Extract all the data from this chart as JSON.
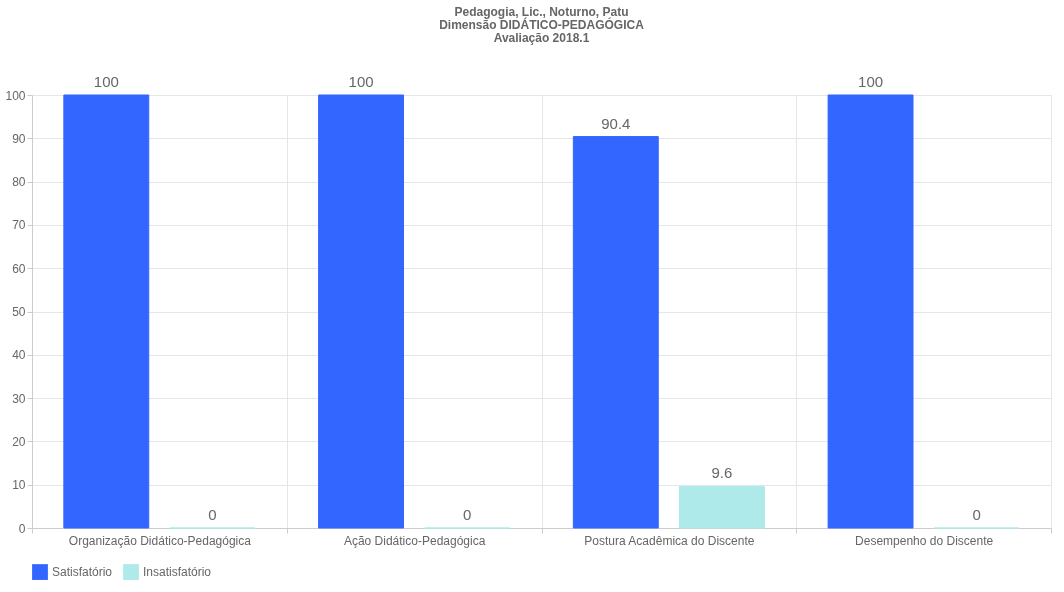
{
  "chart_data": {
    "type": "bar",
    "title": "Pedagogia, Lic., Noturno, Patu\nDimensão DIDÁTICO-PEDAGÓGICA\nAvaliação 2018.1",
    "categories": [
      "Organização Didático-Pedagógica",
      "Ação Didático-Pedagógica",
      "Postura Acadêmica do Discente",
      "Desempenho do Discente"
    ],
    "series": [
      {
        "name": "Satisfatório",
        "color": "#3366ff",
        "values": [
          100,
          100,
          90.4,
          100
        ]
      },
      {
        "name": "Insatisfatório",
        "color": "#aeeaea",
        "values": [
          0,
          0,
          9.6,
          0
        ]
      }
    ],
    "ylim": [
      0,
      100
    ],
    "yticks": [
      0,
      10,
      20,
      30,
      40,
      50,
      60,
      70,
      80,
      90,
      100
    ],
    "grid": true,
    "legend": "bottom",
    "data_labels": true
  }
}
